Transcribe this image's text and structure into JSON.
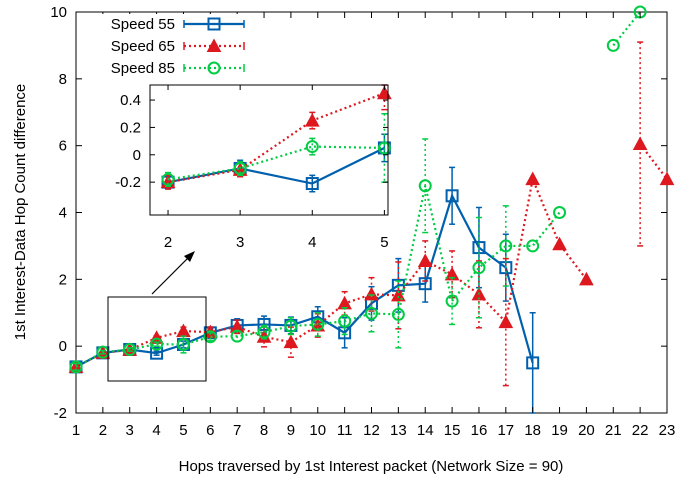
{
  "chart_data": {
    "type": "line",
    "xlabel": "Hops traversed by 1st Interest packet (Network Size = 90)",
    "ylabel": "1st Interest-Data Hop Count difference",
    "xlim": [
      1,
      23
    ],
    "ylim": [
      -2,
      10
    ],
    "x_ticks": [
      "1",
      "2",
      "3",
      "4",
      "5",
      "6",
      "7",
      "8",
      "9",
      "10",
      "11",
      "12",
      "13",
      "14",
      "15",
      "16",
      "17",
      "18",
      "19",
      "20",
      "21",
      "22",
      "23"
    ],
    "y_ticks": [
      "-2",
      "0",
      "2",
      "4",
      "6",
      "8",
      "10"
    ],
    "legend_position": "top-left",
    "grid": false,
    "series": [
      {
        "name": "Speed 55",
        "color": "#0060ad",
        "line_style": "solid",
        "marker": "square",
        "x": [
          1,
          2,
          3,
          4,
          5,
          6,
          7,
          8,
          9,
          10,
          11,
          12,
          13,
          14,
          15,
          16,
          17,
          18
        ],
        "y": [
          -0.62,
          -0.2,
          -0.1,
          -0.21,
          0.05,
          0.4,
          0.62,
          0.65,
          0.62,
          0.88,
          0.4,
          1.28,
          1.82,
          1.87,
          4.5,
          2.95,
          2.35,
          -0.5
        ],
        "err": [
          0.12,
          0.05,
          0.06,
          0.06,
          0.1,
          0.12,
          0.2,
          0.25,
          0.25,
          0.3,
          0.45,
          0.5,
          0.8,
          0.55,
          0.85,
          1.2,
          1.0,
          1.5
        ]
      },
      {
        "name": "Speed 65",
        "color": "#dd181f",
        "line_style": "dotted",
        "marker": "triangle",
        "x": [
          1,
          2,
          3,
          4,
          5,
          6,
          7,
          8,
          9,
          10,
          11,
          12,
          13,
          14,
          15,
          16,
          17,
          18,
          19,
          20,
          21,
          22,
          23
        ],
        "y": [
          -0.62,
          -0.2,
          -0.11,
          0.25,
          0.45,
          0.42,
          0.58,
          0.28,
          0.12,
          0.62,
          1.28,
          1.55,
          1.52,
          2.55,
          2.15,
          1.55,
          0.72,
          5.0,
          3.05,
          2.0,
          null,
          6.05,
          5.0
        ],
        "err": [
          0.1,
          0.05,
          0.05,
          0.06,
          0.12,
          0.15,
          0.2,
          0.3,
          0.45,
          0.35,
          0.35,
          0.5,
          1.0,
          0.6,
          0.7,
          1.0,
          1.9,
          0,
          0,
          0,
          null,
          3.05,
          0
        ]
      },
      {
        "name": "Speed 85",
        "color": "#00cc44",
        "line_style": "dotted",
        "marker": "circle",
        "x": [
          1,
          2,
          3,
          4,
          5,
          6,
          7,
          8,
          9,
          10,
          11,
          12,
          13,
          14,
          15,
          16,
          17,
          18,
          19,
          20,
          21,
          22
        ],
        "y": [
          -0.62,
          -0.18,
          -0.1,
          0.06,
          0.05,
          0.28,
          0.3,
          0.42,
          0.6,
          0.65,
          0.75,
          0.98,
          0.95,
          4.8,
          1.35,
          2.35,
          3.0,
          3.0,
          4.0,
          null,
          9.0,
          10.0
        ],
        "err": [
          0.1,
          0.05,
          0.05,
          0.06,
          0.25,
          0.12,
          0.15,
          0.2,
          0.25,
          0.35,
          0.4,
          0.55,
          1.0,
          1.4,
          0.7,
          1.5,
          1.2,
          0,
          0,
          null,
          0,
          0
        ]
      }
    ],
    "inset": {
      "x_ticks": [
        "2",
        "3",
        "4",
        "5"
      ],
      "y_ticks": [
        "-0.2",
        "0",
        "0.2",
        "0.4"
      ],
      "xlim": [
        1.75,
        5.05
      ],
      "ylim": [
        -0.44,
        0.51
      ],
      "zoom_x_range": [
        1.75,
        5.5
      ],
      "zoom_y_range": [
        -1.0,
        0.8
      ]
    }
  }
}
